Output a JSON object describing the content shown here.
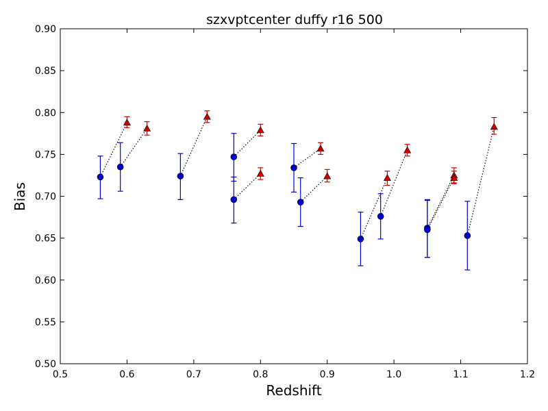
{
  "chart_data": {
    "type": "scatter",
    "title": "szxvptcenter duffy r16 500",
    "xlabel": "Redshift",
    "ylabel": "Bias",
    "xlim": [
      0.5,
      1.2
    ],
    "ylim": [
      0.5,
      0.9
    ],
    "x_ticks": [
      "0.5",
      "0.6",
      "0.7",
      "0.8",
      "0.9",
      "1.0",
      "1.1",
      "1.2"
    ],
    "y_ticks": [
      "0.50",
      "0.55",
      "0.60",
      "0.65",
      "0.70",
      "0.75",
      "0.80",
      "0.85",
      "0.90"
    ],
    "grid": false,
    "legend": "none",
    "colors": {
      "circle": "#0000cc",
      "triangle": "#cc0000",
      "connector": "#000000"
    },
    "series": [
      {
        "marker": "circle",
        "color": "#0000cc",
        "points": [
          {
            "x": 0.56,
            "y": 0.723,
            "err_low": 0.026,
            "err_high": 0.025
          },
          {
            "x": 0.59,
            "y": 0.735,
            "err_low": 0.029,
            "err_high": 0.029
          },
          {
            "x": 0.68,
            "y": 0.724,
            "err_low": 0.028,
            "err_high": 0.027
          },
          {
            "x": 0.76,
            "y": 0.747,
            "err_low": 0.029,
            "err_high": 0.028
          },
          {
            "x": 0.76,
            "y": 0.696,
            "err_low": 0.028,
            "err_high": 0.027
          },
          {
            "x": 0.85,
            "y": 0.734,
            "err_low": 0.029,
            "err_high": 0.029
          },
          {
            "x": 0.86,
            "y": 0.693,
            "err_low": 0.029,
            "err_high": 0.029
          },
          {
            "x": 0.95,
            "y": 0.649,
            "err_low": 0.032,
            "err_high": 0.032
          },
          {
            "x": 0.98,
            "y": 0.676,
            "err_low": 0.027,
            "err_high": 0.027
          },
          {
            "x": 1.05,
            "y": 0.662,
            "err_low": 0.035,
            "err_high": 0.034
          },
          {
            "x": 1.05,
            "y": 0.66,
            "err_low": 0.033,
            "err_high": 0.035
          },
          {
            "x": 1.11,
            "y": 0.653,
            "err_low": 0.041,
            "err_high": 0.041
          }
        ]
      },
      {
        "marker": "triangle",
        "color": "#cc0000",
        "points": [
          {
            "x": 0.6,
            "y": 0.788,
            "err_low": 0.006,
            "err_high": 0.007
          },
          {
            "x": 0.63,
            "y": 0.781,
            "err_low": 0.008,
            "err_high": 0.008
          },
          {
            "x": 0.72,
            "y": 0.795,
            "err_low": 0.007,
            "err_high": 0.007
          },
          {
            "x": 0.8,
            "y": 0.779,
            "err_low": 0.007,
            "err_high": 0.007
          },
          {
            "x": 0.8,
            "y": 0.727,
            "err_low": 0.007,
            "err_high": 0.007
          },
          {
            "x": 0.89,
            "y": 0.757,
            "err_low": 0.007,
            "err_high": 0.007
          },
          {
            "x": 0.9,
            "y": 0.724,
            "err_low": 0.007,
            "err_high": 0.008
          },
          {
            "x": 0.99,
            "y": 0.722,
            "err_low": 0.009,
            "err_high": 0.008
          },
          {
            "x": 1.02,
            "y": 0.755,
            "err_low": 0.007,
            "err_high": 0.007
          },
          {
            "x": 1.09,
            "y": 0.725,
            "err_low": 0.009,
            "err_high": 0.009
          },
          {
            "x": 1.09,
            "y": 0.722,
            "err_low": 0.007,
            "err_high": 0.008
          },
          {
            "x": 1.15,
            "y": 0.783,
            "err_low": 0.009,
            "err_high": 0.011
          }
        ]
      }
    ],
    "pairs": [
      [
        0,
        0
      ],
      [
        1,
        1
      ],
      [
        2,
        2
      ],
      [
        3,
        3
      ],
      [
        4,
        4
      ],
      [
        5,
        5
      ],
      [
        6,
        6
      ],
      [
        7,
        7
      ],
      [
        8,
        8
      ],
      [
        9,
        9
      ],
      [
        10,
        10
      ],
      [
        11,
        11
      ]
    ]
  }
}
